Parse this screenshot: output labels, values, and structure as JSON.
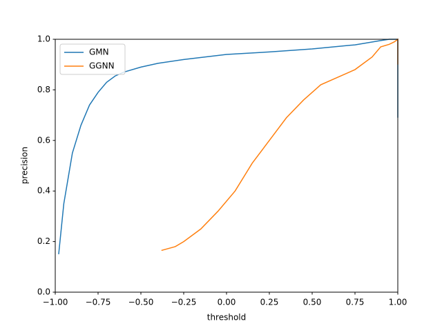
{
  "chart_data": {
    "type": "line",
    "xlabel": "threshold",
    "ylabel": "precision",
    "xlim": [
      -1,
      1
    ],
    "ylim": [
      0,
      1
    ],
    "xticks": [
      {
        "value": -1,
        "label": "−1.00"
      },
      {
        "value": -0.75,
        "label": "−0.75"
      },
      {
        "value": -0.5,
        "label": "−0.50"
      },
      {
        "value": -0.25,
        "label": "−0.25"
      },
      {
        "value": 0,
        "label": "0.00"
      },
      {
        "value": 0.25,
        "label": "0.25"
      },
      {
        "value": 0.5,
        "label": "0.50"
      },
      {
        "value": 0.75,
        "label": "0.75"
      },
      {
        "value": 1,
        "label": "1.00"
      }
    ],
    "yticks": [
      {
        "value": 0,
        "label": "0.0"
      },
      0.2,
      0.4,
      0.6,
      0.8,
      {
        "value": 1,
        "label": "1.0"
      }
    ],
    "legend": "upper left",
    "series": [
      {
        "name": "GMN",
        "color": "#1f77b4",
        "x": [
          -0.98,
          -0.95,
          -0.9,
          -0.85,
          -0.8,
          -0.75,
          -0.7,
          -0.65,
          -0.6,
          -0.5,
          -0.4,
          -0.25,
          0,
          0.25,
          0.5,
          0.75,
          0.9,
          0.95,
          1,
          1
        ],
        "values": [
          0.15,
          0.35,
          0.55,
          0.66,
          0.74,
          0.79,
          0.83,
          0.855,
          0.87,
          0.89,
          0.905,
          0.92,
          0.94,
          0.95,
          0.962,
          0.978,
          0.995,
          1,
          1,
          0.69
        ]
      },
      {
        "name": "GGNN",
        "color": "#ff7f0e",
        "x": [
          -0.38,
          -0.3,
          -0.25,
          -0.15,
          -0.05,
          0.05,
          0.15,
          0.25,
          0.35,
          0.45,
          0.55,
          0.65,
          0.75,
          0.85,
          0.9,
          0.95,
          0.98,
          1,
          1
        ],
        "values": [
          0.165,
          0.18,
          0.2,
          0.25,
          0.32,
          0.4,
          0.51,
          0.6,
          0.69,
          0.76,
          0.82,
          0.85,
          0.88,
          0.93,
          0.97,
          0.98,
          0.99,
          1,
          0.9
        ]
      }
    ]
  }
}
